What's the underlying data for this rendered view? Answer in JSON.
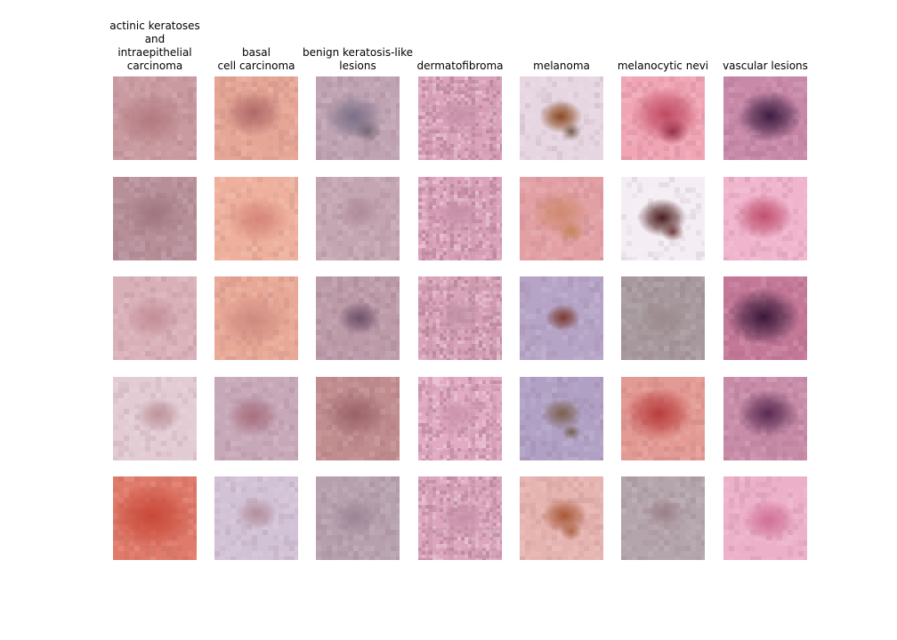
{
  "columns": [
    {
      "label": "actinic keratoses\nand\nintraepithelial\ncarcinoma",
      "tiles": [
        {
          "bg": "#c99aa0",
          "spot": "#b27a80",
          "spotSize": 0.45,
          "spot2": null,
          "pattern": false
        },
        {
          "bg": "#b68f99",
          "spot": "#a07680",
          "spotSize": 0.4,
          "spot2": null,
          "pattern": false
        },
        {
          "bg": "#d9b0b8",
          "spot": "#c48e98",
          "spotSize": 0.35,
          "spot2": null,
          "pattern": false
        },
        {
          "bg": "#e2cbd3",
          "spot": "#c0949c",
          "spotSize": 0.3,
          "spot2": null,
          "pattern": false
        },
        {
          "bg": "#e07a6a",
          "spot": "#c84838",
          "spotSize": 0.55,
          "spot2": null,
          "pattern": false
        }
      ]
    },
    {
      "label": "basal\ncell carcinoma",
      "tiles": [
        {
          "bg": "#e6a696",
          "spot": "#b06a68",
          "spotSize": 0.4,
          "spot2": null,
          "pattern": false
        },
        {
          "bg": "#eeb09c",
          "spot": "#d6867a",
          "spotSize": 0.4,
          "spot2": null,
          "pattern": false
        },
        {
          "bg": "#e8a896",
          "spot": "#cf8a80",
          "spotSize": 0.45,
          "spot2": null,
          "pattern": false
        },
        {
          "bg": "#c7a8b8",
          "spot": "#a87080",
          "spotSize": 0.35,
          "spot2": null,
          "pattern": false
        },
        {
          "bg": "#d2c2d6",
          "spot": "#b4909c",
          "spotSize": 0.28,
          "spot2": null,
          "pattern": false
        }
      ]
    },
    {
      "label": "benign keratosis-like\nlesions",
      "tiles": [
        {
          "bg": "#bfa3b2",
          "spot": "#7c7088",
          "spotSize": 0.38,
          "spot2": "#706070",
          "pattern": false
        },
        {
          "bg": "#c4a6b2",
          "spot": "#b08c9a",
          "spotSize": 0.3,
          "spot2": null,
          "pattern": false
        },
        {
          "bg": "#bc9aa8",
          "spot": "#6e5068",
          "spotSize": 0.28,
          "spot2": null,
          "pattern": false
        },
        {
          "bg": "#c08c8e",
          "spot": "#9a6268",
          "spotSize": 0.4,
          "spot2": null,
          "pattern": false
        },
        {
          "bg": "#b6a0ae",
          "spot": "#9c8494",
          "spotSize": 0.3,
          "spot2": null,
          "pattern": false
        }
      ]
    },
    {
      "label": "dermatofibroma",
      "tiles": [
        {
          "bg": "#dca4bc",
          "spot": "#c690a8",
          "spotSize": 0.3,
          "spot2": null,
          "pattern": true
        },
        {
          "bg": "#dca4bc",
          "spot": "#c690a8",
          "spotSize": 0.3,
          "spot2": null,
          "pattern": true
        },
        {
          "bg": "#d8a2b8",
          "spot": "#c290a6",
          "spotSize": 0.3,
          "spot2": null,
          "pattern": true
        },
        {
          "bg": "#e2aac4",
          "spot": "#cc94ac",
          "spotSize": 0.3,
          "spot2": null,
          "pattern": true
        },
        {
          "bg": "#dca6be",
          "spot": "#c690a8",
          "spotSize": 0.3,
          "spot2": null,
          "pattern": true
        }
      ]
    },
    {
      "label": "melanoma",
      "tiles": [
        {
          "bg": "#e6d6e2",
          "spot": "#8a4a20",
          "spotSize": 0.28,
          "spot2": "#6a5040",
          "pattern": false
        },
        {
          "bg": "#e2a0a4",
          "spot": "#d08a70",
          "spotSize": 0.38,
          "spot2": "#c08050",
          "pattern": false
        },
        {
          "bg": "#b6a4c6",
          "spot": "#7a3a30",
          "spotSize": 0.22,
          "spot2": null,
          "pattern": false
        },
        {
          "bg": "#b0a0c4",
          "spot": "#7c6050",
          "spotSize": 0.26,
          "spot2": "#6a5840",
          "pattern": false
        },
        {
          "bg": "#e6b4b0",
          "spot": "#a85838",
          "spotSize": 0.3,
          "spot2": "#a86040",
          "pattern": false
        }
      ]
    },
    {
      "label": "melanocytic nevi",
      "tiles": [
        {
          "bg": "#f0a4b4",
          "spot": "#c04a62",
          "spotSize": 0.45,
          "spot2": "#902a44",
          "pattern": false
        },
        {
          "bg": "#f4eef4",
          "spot": "#4a1c1c",
          "spotSize": 0.32,
          "spot2": "#6a3030",
          "pattern": false
        },
        {
          "bg": "#a6989c",
          "spot": "#9c8a8c",
          "spotSize": 0.3,
          "spot2": null,
          "pattern": false
        },
        {
          "bg": "#e49a94",
          "spot": "#b83c3c",
          "spotSize": 0.45,
          "spot2": null,
          "pattern": false
        },
        {
          "bg": "#b4a4ac",
          "spot": "#9c8088",
          "spotSize": 0.25,
          "spot2": null,
          "pattern": false
        }
      ]
    },
    {
      "label": "vascular lesions",
      "tiles": [
        {
          "bg": "#c888a8",
          "spot": "#3c1c40",
          "spotSize": 0.42,
          "spot2": null,
          "pattern": false
        },
        {
          "bg": "#f0b4cc",
          "spot": "#c05070",
          "spotSize": 0.38,
          "spot2": null,
          "pattern": false
        },
        {
          "bg": "#c47898",
          "spot": "#3a1838",
          "spotSize": 0.48,
          "spot2": null,
          "pattern": false
        },
        {
          "bg": "#c88ca8",
          "spot": "#5a2a50",
          "spotSize": 0.4,
          "spot2": null,
          "pattern": false
        },
        {
          "bg": "#ecb0c8",
          "spot": "#d07098",
          "spotSize": 0.35,
          "spot2": null,
          "pattern": false
        }
      ]
    }
  ]
}
